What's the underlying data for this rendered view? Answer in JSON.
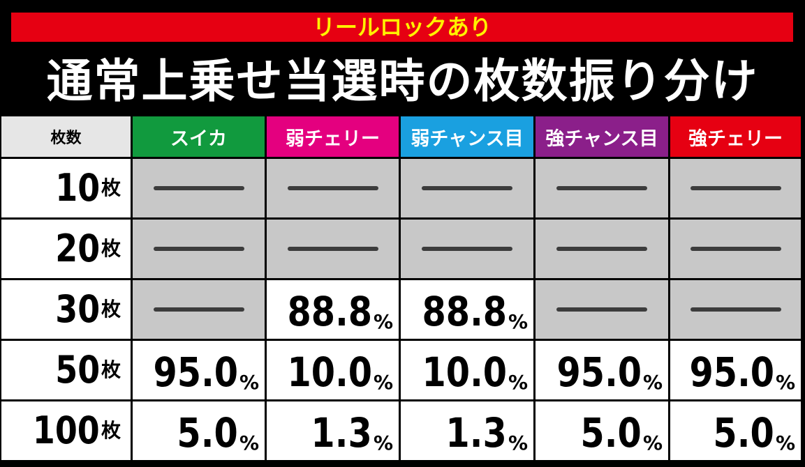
{
  "header": {
    "badge": "リールロックあり",
    "title": "通常上乗せ当選時の枚数振り分け"
  },
  "table": {
    "corner": "枚数",
    "columns": [
      {
        "label": "スイカ",
        "color": "#119a3e"
      },
      {
        "label": "弱チェリー",
        "color": "#e4007f"
      },
      {
        "label": "弱チャンス目",
        "color": "#1aa0e0"
      },
      {
        "label": "強チャンス目",
        "color": "#8b1f8a"
      },
      {
        "label": "強チェリー",
        "color": "#e60012"
      }
    ],
    "rows": [
      {
        "label": {
          "number": "10",
          "unit": "枚"
        },
        "cells": [
          null,
          null,
          null,
          null,
          null
        ]
      },
      {
        "label": {
          "number": "20",
          "unit": "枚"
        },
        "cells": [
          null,
          null,
          null,
          null,
          null
        ]
      },
      {
        "label": {
          "number": "30",
          "unit": "枚"
        },
        "cells": [
          null,
          {
            "value": "88.8",
            "unit": "%"
          },
          {
            "value": "88.8",
            "unit": "%"
          },
          null,
          null
        ]
      },
      {
        "label": {
          "number": "50",
          "unit": "枚"
        },
        "cells": [
          {
            "value": "95.0",
            "unit": "%"
          },
          {
            "value": "10.0",
            "unit": "%"
          },
          {
            "value": "10.0",
            "unit": "%"
          },
          {
            "value": "95.0",
            "unit": "%"
          },
          {
            "value": "95.0",
            "unit": "%"
          }
        ]
      },
      {
        "label": {
          "number": "100",
          "unit": "枚"
        },
        "cells": [
          {
            "value": "5.0",
            "unit": "%"
          },
          {
            "value": "1.3",
            "unit": "%"
          },
          {
            "value": "1.3",
            "unit": "%"
          },
          {
            "value": "5.0",
            "unit": "%"
          },
          {
            "value": "5.0",
            "unit": "%"
          }
        ]
      }
    ]
  }
}
